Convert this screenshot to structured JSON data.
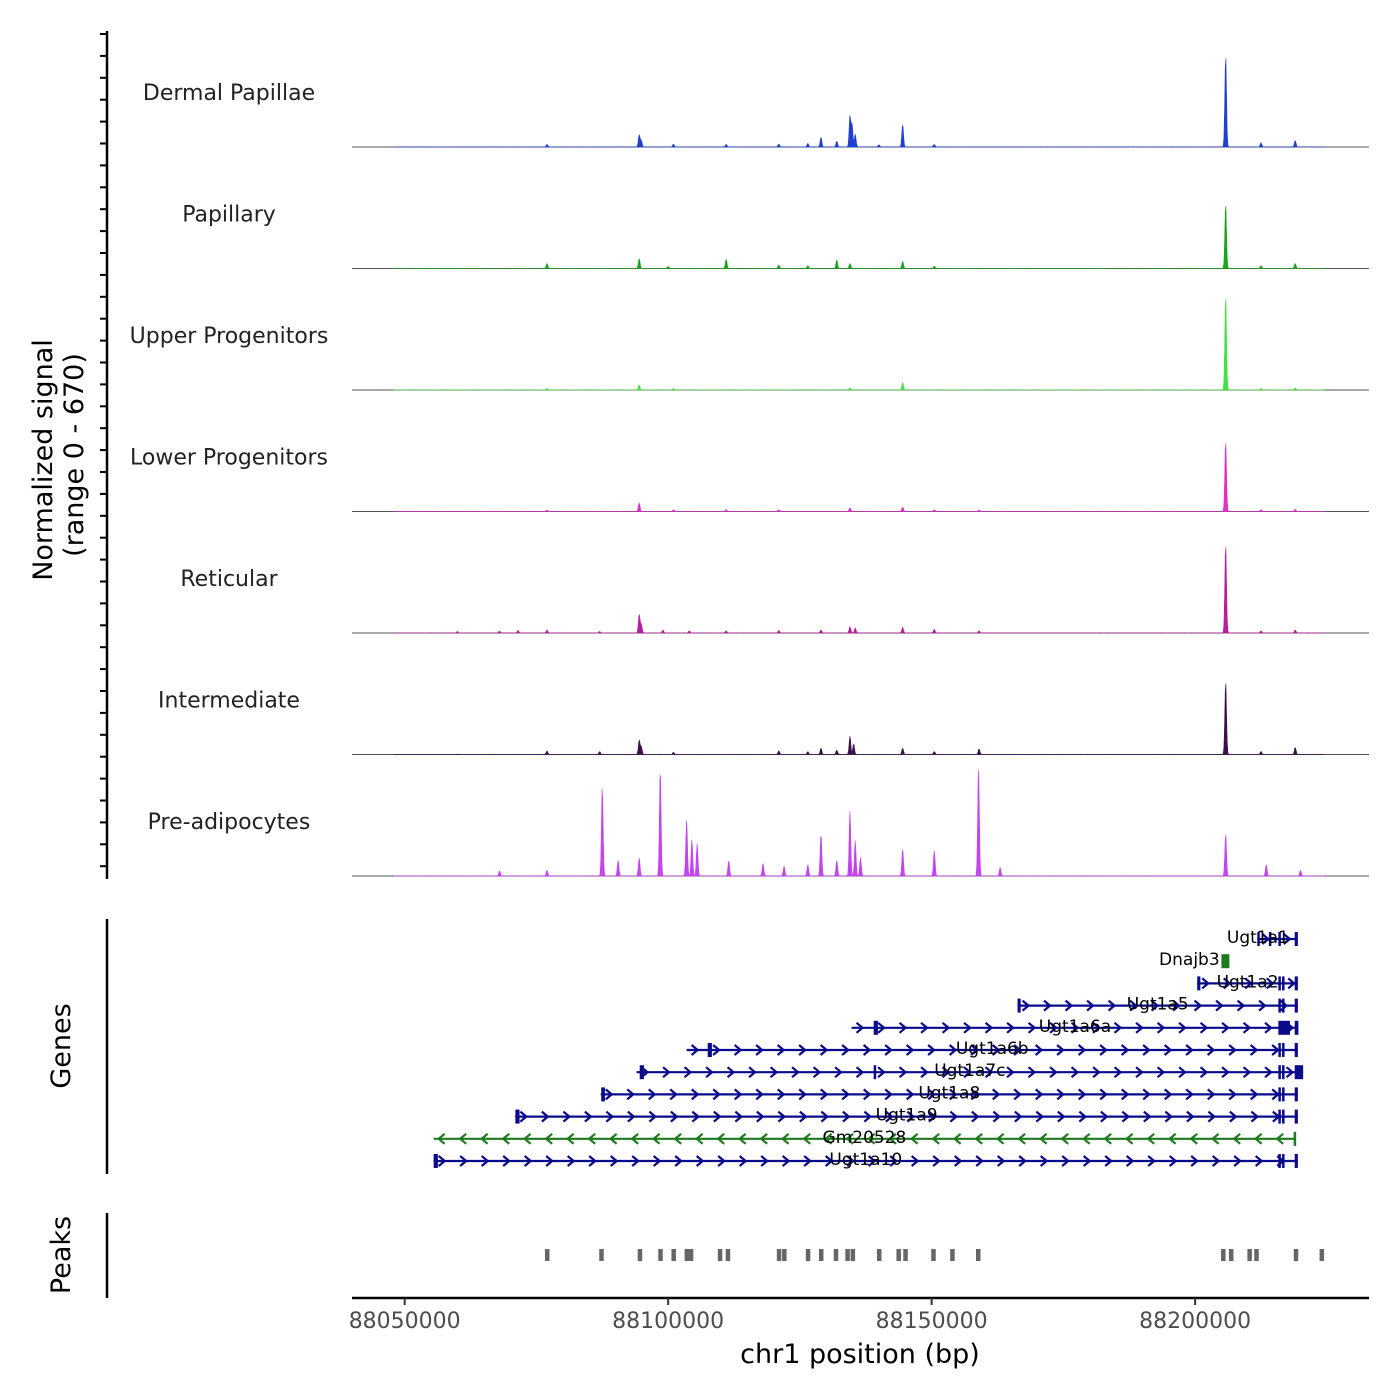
{
  "chart_data": {
    "type": "area",
    "region": {
      "chrom": "chr1",
      "start": 88040000,
      "end": 88233000
    },
    "x_ticks": [
      "88050000",
      "88100000",
      "88150000",
      "88200000"
    ],
    "x_tick_values": [
      88050000,
      88100000,
      88150000,
      88200000
    ],
    "xlabel": "chr1 position (bp)",
    "ylabel_line1": "Normalized signal",
    "ylabel_line2": "(range 0 - 670)",
    "ylim": [
      0,
      670
    ],
    "coverage_tracks": [
      {
        "name": "Dermal Papillae",
        "color": "#1f3fd0",
        "peaks": [
          [
            88077000,
            18
          ],
          [
            88094500,
            85
          ],
          [
            88094900,
            45
          ],
          [
            88101000,
            20
          ],
          [
            88111000,
            18
          ],
          [
            88121000,
            20
          ],
          [
            88126500,
            25
          ],
          [
            88129000,
            70
          ],
          [
            88132000,
            40
          ],
          [
            88134500,
            220
          ],
          [
            88134900,
            160
          ],
          [
            88135500,
            90
          ],
          [
            88140000,
            15
          ],
          [
            88144500,
            160
          ],
          [
            88150500,
            18
          ],
          [
            88205800,
            650
          ],
          [
            88212500,
            30
          ],
          [
            88219000,
            45
          ]
        ]
      },
      {
        "name": "Papillary",
        "color": "#1aa51a",
        "peaks": [
          [
            88077000,
            35
          ],
          [
            88094500,
            70
          ],
          [
            88100000,
            15
          ],
          [
            88111000,
            65
          ],
          [
            88121000,
            25
          ],
          [
            88126500,
            20
          ],
          [
            88132000,
            60
          ],
          [
            88134500,
            35
          ],
          [
            88144500,
            50
          ],
          [
            88150500,
            15
          ],
          [
            88205800,
            460
          ],
          [
            88212500,
            20
          ],
          [
            88219000,
            35
          ]
        ]
      },
      {
        "name": "Upper Progenitors",
        "color": "#42e042",
        "peaks": [
          [
            88077000,
            10
          ],
          [
            88094500,
            35
          ],
          [
            88101000,
            10
          ],
          [
            88134500,
            15
          ],
          [
            88144500,
            50
          ],
          [
            88205800,
            670
          ],
          [
            88212500,
            10
          ],
          [
            88219000,
            15
          ]
        ]
      },
      {
        "name": "Lower Progenitors",
        "color": "#e42ec8",
        "peaks": [
          [
            88077000,
            10
          ],
          [
            88094500,
            60
          ],
          [
            88101000,
            12
          ],
          [
            88111000,
            12
          ],
          [
            88121000,
            12
          ],
          [
            88134500,
            25
          ],
          [
            88144500,
            30
          ],
          [
            88150500,
            12
          ],
          [
            88159000,
            10
          ],
          [
            88205800,
            500
          ],
          [
            88212500,
            12
          ],
          [
            88219000,
            15
          ]
        ]
      },
      {
        "name": "Reticular",
        "color": "#b81d9e",
        "peaks": [
          [
            88060000,
            10
          ],
          [
            88068000,
            12
          ],
          [
            88071500,
            18
          ],
          [
            88077000,
            20
          ],
          [
            88087000,
            10
          ],
          [
            88094500,
            130
          ],
          [
            88094900,
            60
          ],
          [
            88099000,
            20
          ],
          [
            88104000,
            15
          ],
          [
            88111000,
            15
          ],
          [
            88121000,
            18
          ],
          [
            88129000,
            20
          ],
          [
            88134500,
            45
          ],
          [
            88135500,
            35
          ],
          [
            88144500,
            40
          ],
          [
            88150500,
            25
          ],
          [
            88159000,
            15
          ],
          [
            88205800,
            630
          ],
          [
            88212500,
            15
          ],
          [
            88219000,
            20
          ]
        ]
      },
      {
        "name": "Intermediate",
        "color": "#3b0f4a",
        "peaks": [
          [
            88077000,
            25
          ],
          [
            88087000,
            20
          ],
          [
            88094500,
            100
          ],
          [
            88094900,
            55
          ],
          [
            88101000,
            15
          ],
          [
            88121000,
            25
          ],
          [
            88126500,
            20
          ],
          [
            88129000,
            45
          ],
          [
            88132000,
            30
          ],
          [
            88134500,
            130
          ],
          [
            88135200,
            75
          ],
          [
            88144500,
            45
          ],
          [
            88150500,
            20
          ],
          [
            88159000,
            40
          ],
          [
            88205800,
            520
          ],
          [
            88212500,
            20
          ],
          [
            88219000,
            50
          ]
        ]
      },
      {
        "name": "Pre-adipocytes",
        "color": "#c445ee",
        "peaks": [
          [
            88068000,
            35
          ],
          [
            88077000,
            40
          ],
          [
            88087500,
            640
          ],
          [
            88090500,
            110
          ],
          [
            88094500,
            130
          ],
          [
            88098500,
            760
          ],
          [
            88103500,
            400
          ],
          [
            88104500,
            260
          ],
          [
            88105500,
            230
          ],
          [
            88111500,
            110
          ],
          [
            88118000,
            90
          ],
          [
            88122000,
            70
          ],
          [
            88126500,
            80
          ],
          [
            88129000,
            300
          ],
          [
            88132000,
            110
          ],
          [
            88134500,
            460
          ],
          [
            88135500,
            250
          ],
          [
            88136500,
            130
          ],
          [
            88144500,
            190
          ],
          [
            88150500,
            180
          ],
          [
            88158900,
            780
          ],
          [
            88163000,
            60
          ],
          [
            88205800,
            300
          ],
          [
            88213500,
            80
          ],
          [
            88220000,
            40
          ]
        ]
      }
    ],
    "genes": [
      {
        "name": "Ugt1a1",
        "strand": "+",
        "color": "#0a0a8c",
        "start": 88211800,
        "end": 88219500,
        "exons": [
          [
            88211800,
            88212200
          ],
          [
            88214000,
            88214200
          ],
          [
            88215800,
            88216100
          ],
          [
            88218900,
            88219500
          ]
        ]
      },
      {
        "name": "Dnajb3",
        "strand": "-",
        "color": "#1e7a1e",
        "start": 88205000,
        "end": 88206500,
        "exons": [
          [
            88205000,
            88206500
          ]
        ]
      },
      {
        "name": "Ugt1a2",
        "strand": "+",
        "color": "#0a0a8c",
        "start": 88200400,
        "end": 88219500,
        "exons": [
          [
            88200400,
            88201000
          ],
          [
            88215800,
            88216100
          ],
          [
            88216500,
            88216700
          ],
          [
            88218900,
            88219500
          ]
        ]
      },
      {
        "name": "Ugt1a5",
        "strand": "+",
        "color": "#0a0a8c",
        "start": 88166300,
        "end": 88219500,
        "exons": [
          [
            88166300,
            88166900
          ],
          [
            88215800,
            88216100
          ],
          [
            88216500,
            88216700
          ],
          [
            88218900,
            88219500
          ]
        ]
      },
      {
        "name": "Ugt1a6a",
        "strand": "+",
        "color": "#0a0a8c",
        "start": 88134800,
        "end": 88219600,
        "exons": [
          [
            88139000,
            88139800
          ],
          [
            88215800,
            88218000
          ],
          [
            88218900,
            88219600
          ]
        ]
      },
      {
        "name": "Ugt1a6b",
        "strand": "+",
        "color": "#0a0a8c",
        "start": 88103500,
        "end": 88219500,
        "exons": [
          [
            88107500,
            88108300
          ],
          [
            88215800,
            88216100
          ],
          [
            88216500,
            88216700
          ],
          [
            88218900,
            88219500
          ]
        ]
      },
      {
        "name": "Ugt1a7c",
        "strand": "+",
        "color": "#0a0a8c",
        "start": 88094000,
        "end": 88220500,
        "exons": [
          [
            88094600,
            88095400
          ],
          [
            88139000,
            88139400
          ],
          [
            88215800,
            88216100
          ],
          [
            88216500,
            88216700
          ],
          [
            88218900,
            88220500
          ]
        ]
      },
      {
        "name": "Ugt1a8",
        "strand": "+",
        "color": "#0a0a8c",
        "start": 88087200,
        "end": 88219500,
        "exons": [
          [
            88087300,
            88088000
          ],
          [
            88215800,
            88216100
          ],
          [
            88216500,
            88216700
          ],
          [
            88218900,
            88219500
          ]
        ]
      },
      {
        "name": "Ugt1a9",
        "strand": "+",
        "color": "#0a0a8c",
        "start": 88071000,
        "end": 88219500,
        "exons": [
          [
            88071000,
            88071800
          ],
          [
            88215800,
            88216100
          ],
          [
            88216500,
            88216700
          ],
          [
            88218900,
            88219500
          ]
        ]
      },
      {
        "name": "Gm20528",
        "strand": "-",
        "color": "#1e7a1e",
        "start": 88055500,
        "end": 88219000,
        "exons": [
          [
            88218700,
            88219000
          ]
        ]
      },
      {
        "name": "Ugt1a10",
        "strand": "+",
        "color": "#0a0a8c",
        "start": 88055500,
        "end": 88219500,
        "exons": [
          [
            88055500,
            88056300
          ],
          [
            88215800,
            88216100
          ],
          [
            88216500,
            88216700
          ],
          [
            88218900,
            88219500
          ]
        ]
      }
    ],
    "peaks_track": {
      "color": "#666666",
      "positions": [
        88077000,
        88087300,
        88094600,
        88098500,
        88101000,
        88103500,
        88104300,
        88109800,
        88111300,
        88121000,
        88122000,
        88126500,
        88129000,
        88131800,
        88134000,
        88135000,
        88140000,
        88143700,
        88145000,
        88150300,
        88153900,
        88158800,
        88205300,
        88206800,
        88210300,
        88211600,
        88219100,
        88224000
      ]
    },
    "panel_labels": {
      "genes": "Genes",
      "peaks": "Peaks"
    }
  }
}
